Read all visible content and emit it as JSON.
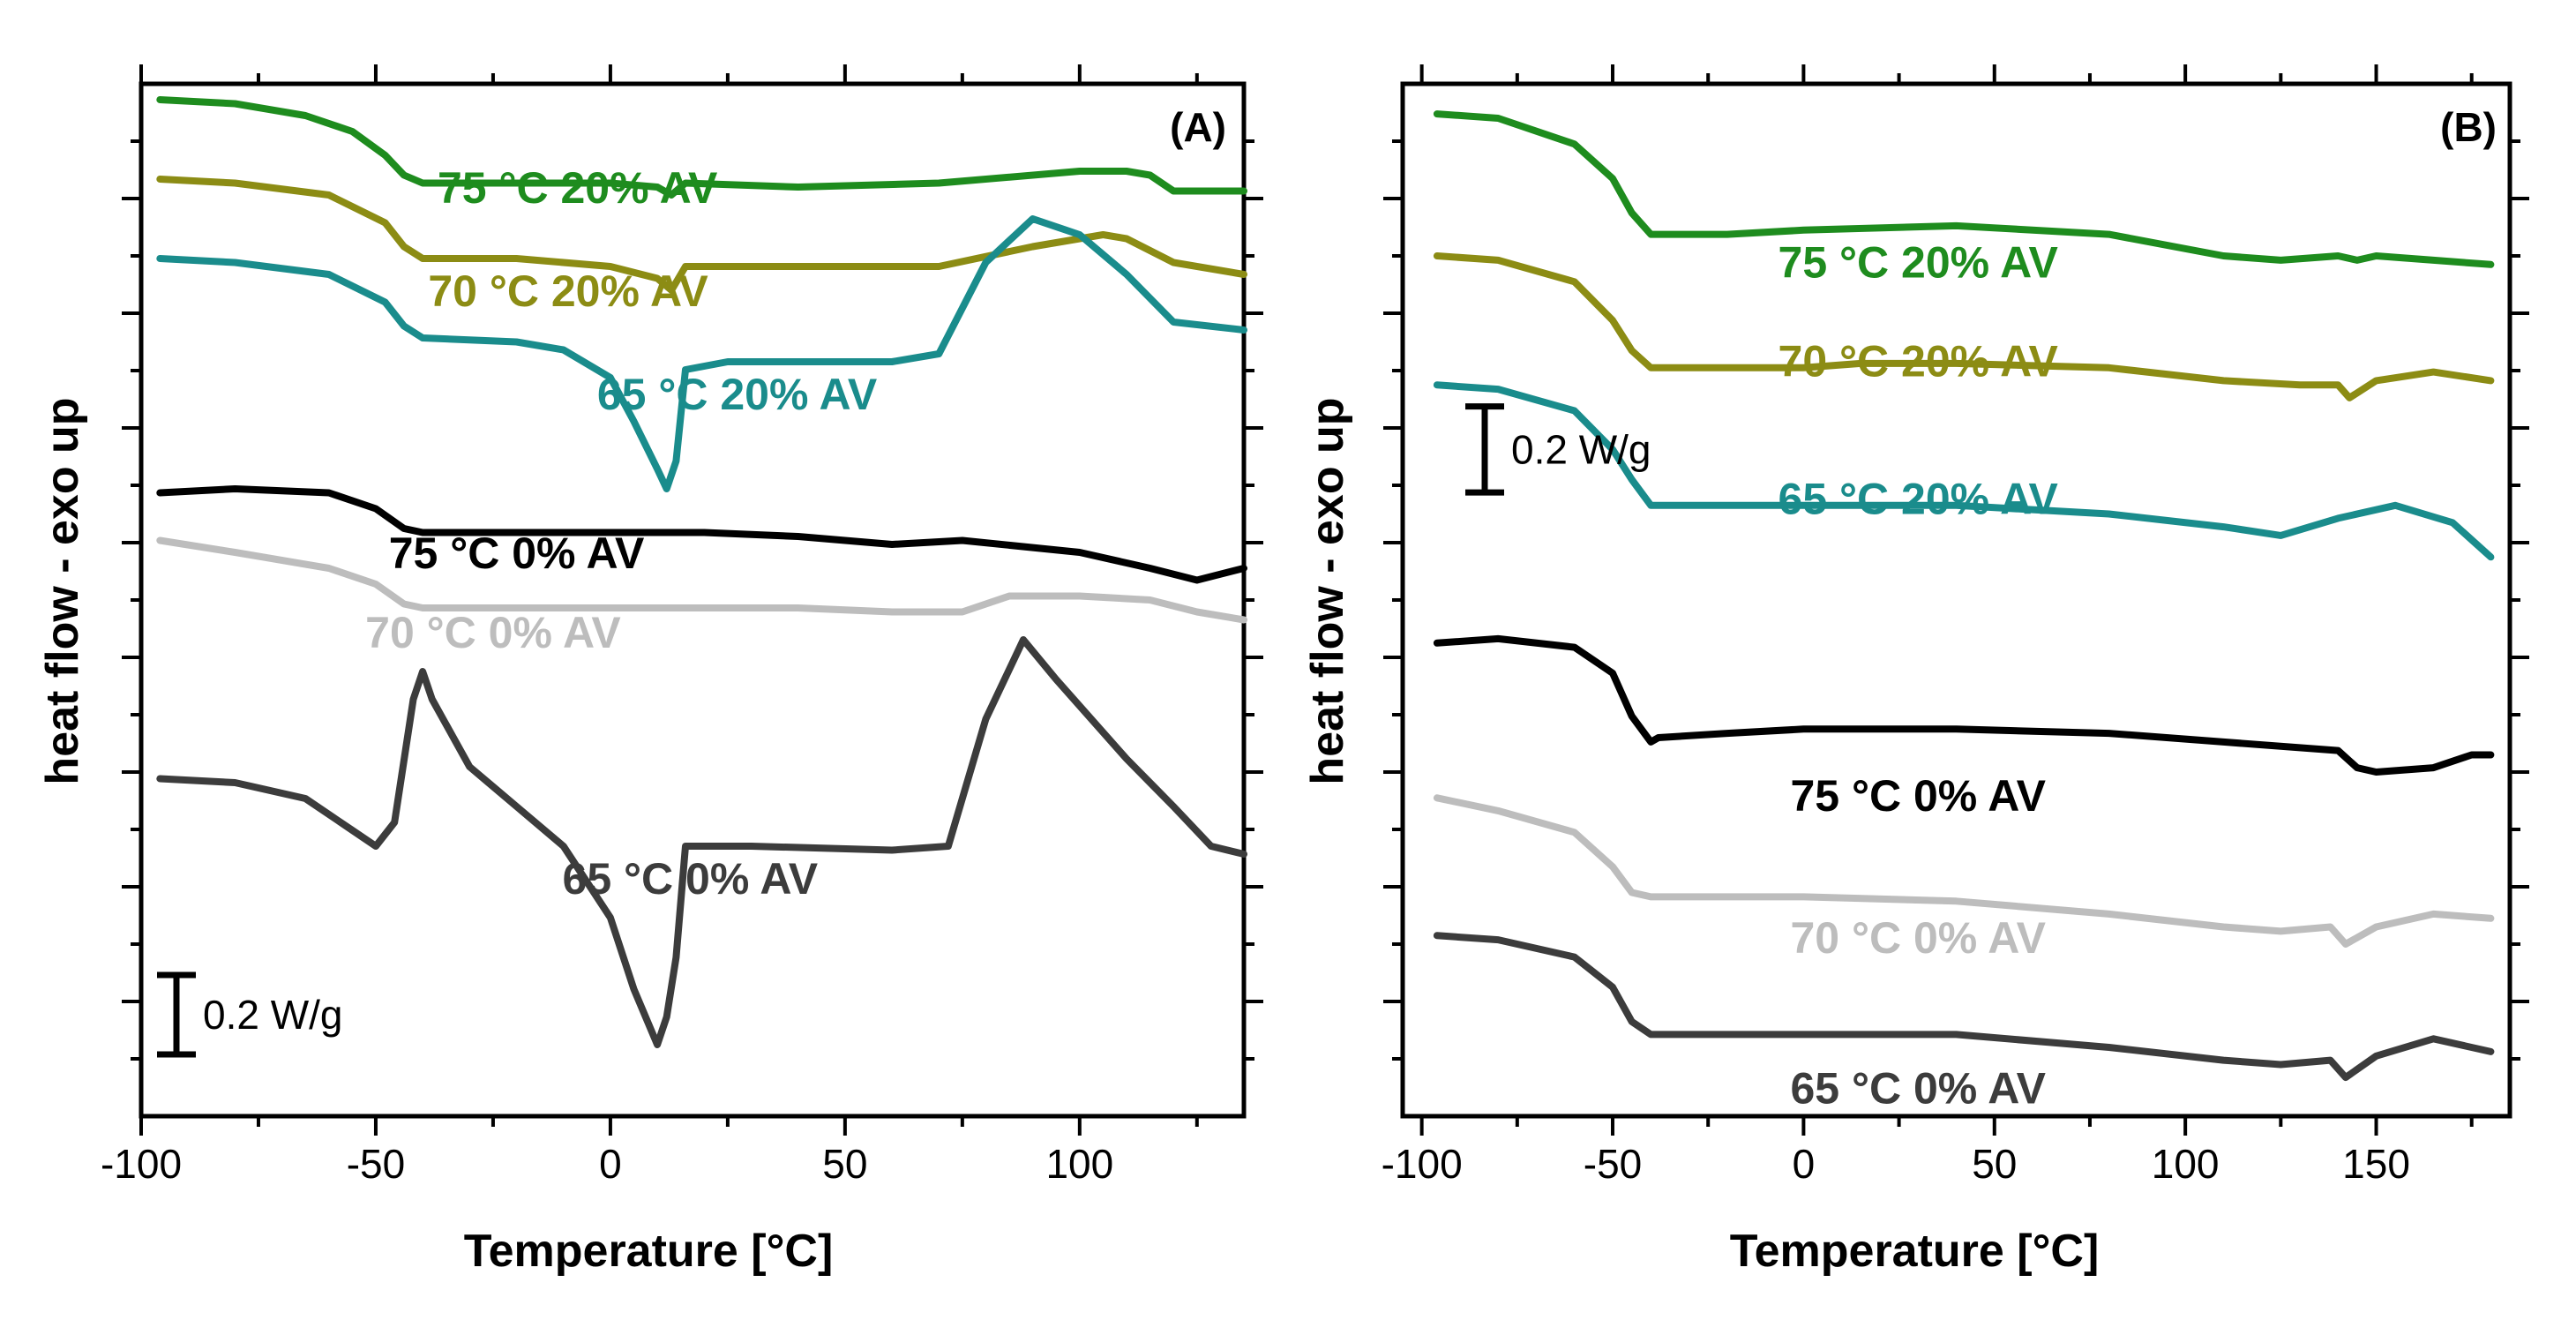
{
  "figure": {
    "ylabel": "heat flow - exo up"
  },
  "chart_data": [
    {
      "type": "line",
      "panel_label": "(A)",
      "xlabel": "Temperature [°C]",
      "ylabel": "heat flow - exo up",
      "xlim": [
        -100,
        135
      ],
      "xticks": [
        -100,
        -50,
        0,
        50,
        100
      ],
      "tick_labels": [
        "-100",
        "-50",
        "0",
        "50",
        "100"
      ],
      "ylim": [
        -2.6,
        0.0
      ],
      "scale_bar": {
        "value": 0.2,
        "label": "0.2 W/g",
        "position": "bottom-left"
      },
      "series": [
        {
          "name": "75 °C 20% AV",
          "color": "#1e8c1e",
          "label_at": [
            -7,
            -0.3
          ],
          "x": [
            -96,
            -80,
            -65,
            -55,
            -48,
            -44,
            -40,
            -30,
            0,
            10,
            13,
            16,
            40,
            70,
            100,
            110,
            115,
            120,
            135
          ],
          "y": [
            -0.04,
            -0.05,
            -0.08,
            -0.12,
            -0.18,
            -0.23,
            -0.25,
            -0.25,
            -0.25,
            -0.26,
            -0.28,
            -0.25,
            -0.26,
            -0.25,
            -0.22,
            -0.22,
            -0.23,
            -0.27,
            -0.27
          ]
        },
        {
          "name": "70 °C 20% AV",
          "color": "#8c8c14",
          "label_at": [
            -9,
            -0.56
          ],
          "x": [
            -96,
            -80,
            -60,
            -48,
            -44,
            -40,
            -20,
            0,
            10,
            13,
            16,
            40,
            70,
            90,
            105,
            110,
            120,
            135
          ],
          "y": [
            -0.24,
            -0.25,
            -0.28,
            -0.35,
            -0.41,
            -0.44,
            -0.44,
            -0.46,
            -0.49,
            -0.52,
            -0.46,
            -0.46,
            -0.46,
            -0.41,
            -0.38,
            -0.39,
            -0.45,
            -0.48
          ]
        },
        {
          "name": "65 °C 20% AV",
          "color": "#1a8c8c",
          "label_at": [
            27,
            -0.82
          ],
          "x": [
            -96,
            -80,
            -60,
            -48,
            -44,
            -40,
            -20,
            -10,
            0,
            5,
            10,
            12,
            14,
            16,
            25,
            60,
            70,
            80,
            90,
            100,
            110,
            120,
            135
          ],
          "y": [
            -0.44,
            -0.45,
            -0.48,
            -0.55,
            -0.61,
            -0.64,
            -0.65,
            -0.67,
            -0.74,
            -0.85,
            -0.97,
            -1.02,
            -0.95,
            -0.72,
            -0.7,
            -0.7,
            -0.68,
            -0.45,
            -0.34,
            -0.38,
            -0.48,
            -0.6,
            -0.62
          ]
        },
        {
          "name": "75 °C  0% AV",
          "color": "#000000",
          "label_at": [
            -20,
            -1.22
          ],
          "x": [
            -96,
            -80,
            -60,
            -50,
            -44,
            -40,
            -20,
            0,
            20,
            40,
            60,
            75,
            100,
            115,
            125,
            135
          ],
          "y": [
            -1.03,
            -1.02,
            -1.03,
            -1.07,
            -1.12,
            -1.13,
            -1.13,
            -1.13,
            -1.13,
            -1.14,
            -1.16,
            -1.15,
            -1.18,
            -1.22,
            -1.25,
            -1.22
          ]
        },
        {
          "name": "70 °C  0% AV",
          "color": "#bdbdbd",
          "label_at": [
            -25,
            -1.42
          ],
          "x": [
            -96,
            -80,
            -60,
            -50,
            -44,
            -40,
            -20,
            0,
            20,
            40,
            60,
            75,
            85,
            100,
            115,
            125,
            135
          ],
          "y": [
            -1.15,
            -1.18,
            -1.22,
            -1.26,
            -1.31,
            -1.32,
            -1.32,
            -1.32,
            -1.32,
            -1.32,
            -1.33,
            -1.33,
            -1.29,
            -1.29,
            -1.3,
            -1.33,
            -1.35
          ]
        },
        {
          "name": "65 °C  0% AV",
          "color": "#3c3c3c",
          "label_at": [
            17,
            -2.04
          ],
          "x": [
            -96,
            -80,
            -65,
            -55,
            -50,
            -46,
            -42,
            -40,
            -38,
            -30,
            -20,
            -10,
            0,
            5,
            10,
            12,
            14,
            16,
            30,
            60,
            72,
            80,
            88,
            95,
            110,
            120,
            128,
            135
          ],
          "y": [
            -1.75,
            -1.76,
            -1.8,
            -1.88,
            -1.92,
            -1.86,
            -1.55,
            -1.48,
            -1.55,
            -1.72,
            -1.82,
            -1.92,
            -2.1,
            -2.28,
            -2.42,
            -2.35,
            -2.2,
            -1.92,
            -1.92,
            -1.93,
            -1.92,
            -1.6,
            -1.4,
            -1.5,
            -1.7,
            -1.82,
            -1.92,
            -1.94
          ]
        }
      ]
    },
    {
      "type": "line",
      "panel_label": "(B)",
      "xlabel": "Temperature [°C]",
      "ylabel": "heat flow - exo up",
      "xlim": [
        -105,
        185
      ],
      "xticks": [
        -100,
        -50,
        0,
        50,
        100,
        150
      ],
      "tick_labels": [
        "-100",
        "-50",
        "0",
        "50",
        "100",
        "150"
      ],
      "ylim": [
        -2.4,
        0.0
      ],
      "scale_bar": {
        "value": 0.2,
        "label": "0.2 W/g",
        "position": "top-left"
      },
      "series": [
        {
          "name": "75 °C 20% AV",
          "color": "#1e8c1e",
          "label_at": [
            30,
            -0.45
          ],
          "x": [
            -96,
            -80,
            -60,
            -50,
            -45,
            -40,
            -20,
            0,
            40,
            80,
            110,
            125,
            140,
            145,
            150,
            165,
            180
          ],
          "y": [
            -0.07,
            -0.08,
            -0.14,
            -0.22,
            -0.3,
            -0.35,
            -0.35,
            -0.34,
            -0.33,
            -0.35,
            -0.4,
            -0.41,
            -0.4,
            -0.41,
            -0.4,
            -0.41,
            -0.42
          ]
        },
        {
          "name": "70 °C 20% AV",
          "color": "#8c8c14",
          "label_at": [
            30,
            -0.68
          ],
          "x": [
            -96,
            -80,
            -60,
            -50,
            -45,
            -40,
            -20,
            0,
            15,
            40,
            80,
            110,
            130,
            140,
            143,
            150,
            165,
            180
          ],
          "y": [
            -0.4,
            -0.41,
            -0.46,
            -0.55,
            -0.62,
            -0.66,
            -0.66,
            -0.66,
            -0.65,
            -0.65,
            -0.66,
            -0.69,
            -0.7,
            -0.7,
            -0.73,
            -0.69,
            -0.67,
            -0.69
          ]
        },
        {
          "name": "65 °C 20% AV",
          "color": "#1a8c8c",
          "label_at": [
            30,
            -1.0
          ],
          "x": [
            -96,
            -80,
            -60,
            -50,
            -45,
            -40,
            -20,
            0,
            40,
            80,
            110,
            125,
            140,
            155,
            170,
            180
          ],
          "y": [
            -0.7,
            -0.71,
            -0.76,
            -0.85,
            -0.92,
            -0.98,
            -0.98,
            -0.98,
            -0.98,
            -1.0,
            -1.03,
            -1.05,
            -1.01,
            -0.98,
            -1.02,
            -1.1
          ]
        },
        {
          "name": "75 °C  0% AV",
          "color": "#000000",
          "label_at": [
            30,
            -1.69
          ],
          "x": [
            -96,
            -80,
            -60,
            -50,
            -45,
            -40,
            -38,
            -20,
            0,
            40,
            80,
            110,
            140,
            145,
            150,
            165,
            175,
            180
          ],
          "y": [
            -1.3,
            -1.29,
            -1.31,
            -1.37,
            -1.47,
            -1.53,
            -1.52,
            -1.51,
            -1.5,
            -1.5,
            -1.51,
            -1.53,
            -1.55,
            -1.59,
            -1.6,
            -1.59,
            -1.56,
            -1.56
          ]
        },
        {
          "name": "70 °C  0% AV",
          "color": "#bdbdbd",
          "label_at": [
            30,
            -2.02
          ],
          "x": [
            -96,
            -80,
            -60,
            -50,
            -45,
            -40,
            -20,
            0,
            40,
            80,
            110,
            125,
            138,
            142,
            150,
            165,
            180
          ],
          "y": [
            -1.66,
            -1.69,
            -1.74,
            -1.82,
            -1.88,
            -1.89,
            -1.89,
            -1.89,
            -1.9,
            -1.93,
            -1.96,
            -1.97,
            -1.96,
            -2.0,
            -1.96,
            -1.93,
            -1.94
          ]
        },
        {
          "name": "65 °C  0% AV",
          "color": "#3c3c3c",
          "label_at": [
            30,
            -2.37
          ],
          "x": [
            -96,
            -80,
            -60,
            -50,
            -45,
            -40,
            -20,
            0,
            40,
            80,
            110,
            125,
            138,
            142,
            150,
            165,
            180
          ],
          "y": [
            -1.98,
            -1.99,
            -2.03,
            -2.1,
            -2.18,
            -2.21,
            -2.21,
            -2.21,
            -2.21,
            -2.24,
            -2.27,
            -2.28,
            -2.27,
            -2.31,
            -2.26,
            -2.22,
            -2.25
          ]
        }
      ]
    }
  ]
}
